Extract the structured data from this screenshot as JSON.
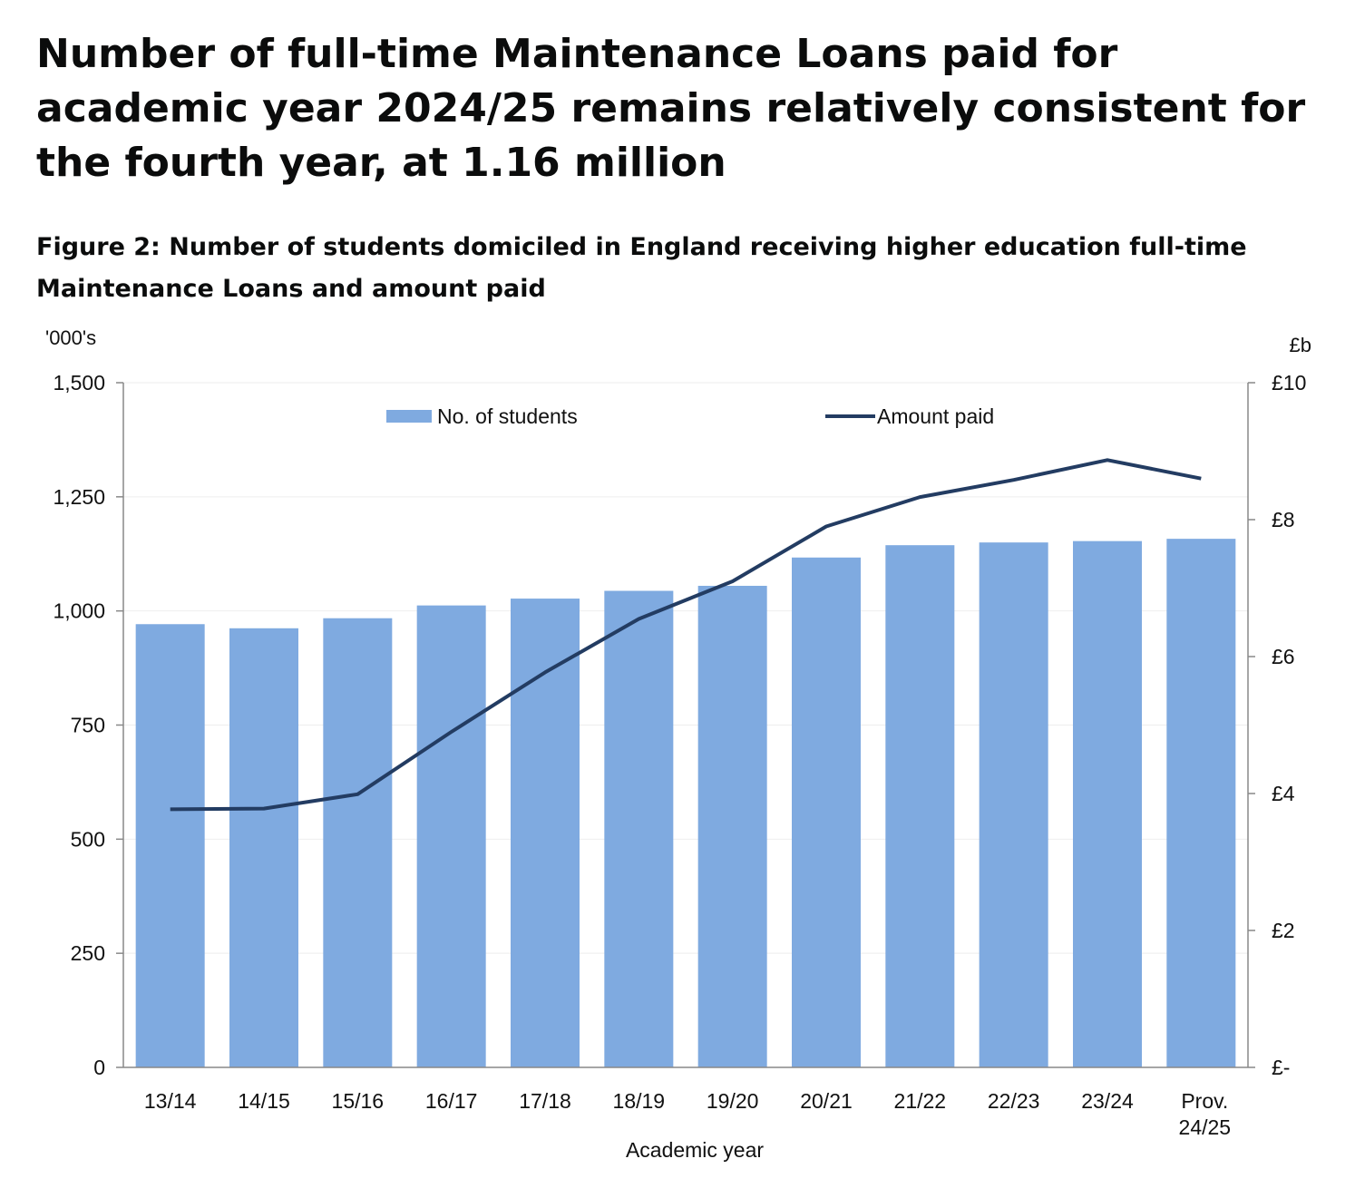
{
  "headline": "Number of full-time Maintenance Loans paid for academic year 2024/25 remains relatively consistent for the fourth year, at 1.16 million",
  "figure_title": "Figure 2: Number of students domiciled in England receiving higher education full-time Maintenance Loans and amount paid",
  "colors": {
    "bars": "#7faae0",
    "line": "#233c62",
    "axis": "#888888",
    "grid": "#eeeeee"
  },
  "chart_data": {
    "type": "bar",
    "categories": [
      "13/14",
      "14/15",
      "15/16",
      "16/17",
      "17/18",
      "18/19",
      "19/20",
      "20/21",
      "21/22",
      "22/23",
      "23/24",
      "Prov. 24/25"
    ],
    "series": [
      {
        "name": "No. of students",
        "type": "bar",
        "axis": "left",
        "values": [
          971,
          962,
          984,
          1012,
          1027,
          1044,
          1055,
          1117,
          1144,
          1150,
          1153,
          1158
        ]
      },
      {
        "name": "Amount paid",
        "type": "line",
        "axis": "right",
        "values": [
          3.77,
          3.78,
          3.99,
          4.9,
          5.77,
          6.55,
          7.1,
          7.9,
          8.33,
          8.58,
          8.87,
          8.6
        ]
      }
    ],
    "xlabel": "Academic year",
    "ylabel_left": "'000's",
    "ylabel_right": "£b",
    "ylim_left": [
      0,
      1500
    ],
    "ylim_right": [
      0,
      10
    ],
    "yticks_left": [
      "0",
      "250",
      "500",
      "750",
      "1,000",
      "1,250",
      "1,500"
    ],
    "yticks_right": [
      "£-",
      "£2",
      "£4",
      "£6",
      "£8",
      "£10"
    ],
    "grid": true,
    "legend": "top"
  }
}
